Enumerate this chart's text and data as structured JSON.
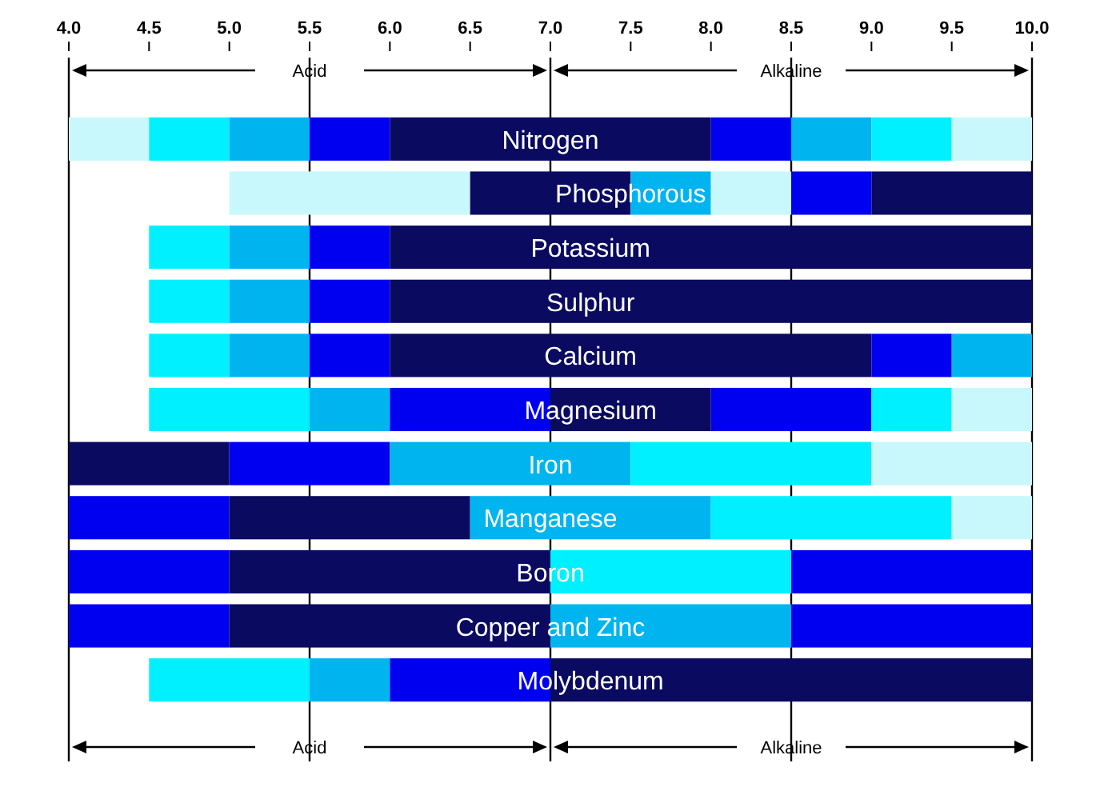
{
  "chart_data": {
    "type": "bar",
    "orientation": "horizontal",
    "categories": [
      "Nitrogen",
      "Phosphorous",
      "Potassium",
      "Sulphur",
      "Calcium",
      "Magnesium",
      "Iron",
      "Manganese",
      "Boron",
      "Copper and Zinc",
      "Molybdenum"
    ],
    "series": [
      {
        "base": [
          4,
          5,
          4.5,
          4.5,
          4.5,
          4.5,
          4,
          4,
          4,
          4,
          4.5
        ],
        "values": [
          0.5,
          1.5,
          0.5,
          0.5,
          0.5,
          1,
          1,
          1,
          1,
          1,
          1
        ],
        "colors": [
          "#c8f8fc",
          "#c8f8fc",
          "#00f0ff",
          "#00f0ff",
          "#00f0ff",
          "#00f0ff",
          "#0a0a60",
          "#0000f0",
          "#0000f0",
          "#0000f0",
          "#00f0ff"
        ]
      },
      {
        "base": [
          4.5,
          6.5,
          5,
          5,
          5,
          5.5,
          5,
          5,
          5,
          5,
          5.5
        ],
        "values": [
          0.5,
          1,
          0.5,
          0.5,
          0.5,
          0.5,
          1,
          1.5,
          2,
          2,
          0.5
        ],
        "colors": [
          "#00f0ff",
          "#0a0a60",
          "#00b4f0",
          "#00b4f0",
          "#00b4f0",
          "#00b4f0",
          "#0000f0",
          "#0a0a60",
          "#0a0a60",
          "#0a0a60",
          "#00b4f0"
        ]
      },
      {
        "base": [
          5,
          7.5,
          5.5,
          5.5,
          5.5,
          6,
          6,
          6.5,
          7,
          7,
          6
        ],
        "values": [
          0.5,
          0.5,
          0.5,
          0.5,
          0.5,
          1,
          1.5,
          1.5,
          1.5,
          1.5,
          1
        ],
        "colors": [
          "#00b4f0",
          "#00b4f0",
          "#0000f0",
          "#0000f0",
          "#0000f0",
          "#0000f0",
          "#00b4f0",
          "#00b4f0",
          "#00f0ff",
          "#00b4f0",
          "#0000f0"
        ]
      },
      {
        "base": [
          5.5,
          8,
          6,
          6,
          6,
          7,
          7.5,
          8,
          8.5,
          8.5,
          7
        ],
        "values": [
          0.5,
          0.5,
          4,
          4,
          3,
          1,
          1.5,
          1.5,
          1.5,
          1.5,
          3
        ],
        "colors": [
          "#0000f0",
          "#c8f8fc",
          "#0a0a60",
          "#0a0a60",
          "#0a0a60",
          "#0a0a60",
          "#00f0ff",
          "#00f0ff",
          "#0000f0",
          "#0000f0",
          "#0a0a60"
        ]
      },
      {
        "base": [
          6,
          8.5,
          null,
          null,
          9,
          8,
          9,
          9.5,
          null,
          null,
          null
        ],
        "values": [
          2,
          0.5,
          null,
          null,
          0.5,
          1,
          1,
          0.5,
          null,
          null,
          null
        ],
        "colors": [
          "#0a0a60",
          "#0000f0",
          null,
          null,
          "#0000f0",
          "#0000f0",
          "#c8f8fc",
          "#c8f8fc",
          null,
          null,
          null
        ]
      },
      {
        "base": [
          8,
          9,
          null,
          null,
          9.5,
          9,
          null,
          null,
          null,
          null,
          null
        ],
        "values": [
          0.5,
          1,
          null,
          null,
          0.5,
          0.5,
          null,
          null,
          null,
          null,
          null
        ],
        "colors": [
          "#0000f0",
          "#0a0a60",
          null,
          null,
          "#00b4f0",
          "#00f0ff",
          null,
          null,
          null,
          null,
          null
        ]
      },
      {
        "base": [
          8.5,
          null,
          null,
          null,
          null,
          9.5,
          null,
          null,
          null,
          null,
          null
        ],
        "values": [
          0.5,
          null,
          null,
          null,
          null,
          0.5,
          null,
          null,
          null,
          null,
          null
        ],
        "colors": [
          "#00b4f0",
          null,
          null,
          null,
          null,
          "#c8f8fc",
          null,
          null,
          null,
          null,
          null
        ]
      },
      {
        "base": [
          9,
          null,
          null,
          null,
          null,
          null,
          null,
          null,
          null,
          null,
          null
        ],
        "values": [
          0.5,
          null,
          null,
          null,
          null,
          null,
          null,
          null,
          null,
          null,
          null
        ],
        "colors": [
          "#00f0ff",
          null,
          null,
          null,
          null,
          null,
          null,
          null,
          null,
          null,
          null
        ]
      },
      {
        "base": [
          9.5,
          null,
          null,
          null,
          null,
          null,
          null,
          null,
          null,
          null,
          null
        ],
        "values": [
          0.5,
          null,
          null,
          null,
          null,
          null,
          null,
          null,
          null,
          null,
          null
        ],
        "colors": [
          "#c8f8fc",
          null,
          null,
          null,
          null,
          null,
          null,
          null,
          null,
          null,
          null
        ]
      }
    ],
    "xlim": [
      4,
      10
    ],
    "xticks": [
      {
        "value": 4,
        "label": "4.0"
      },
      {
        "value": 4.5,
        "label": "4.5"
      },
      {
        "value": 5,
        "label": "5.0"
      },
      {
        "value": 5.5,
        "label": "5.5"
      },
      {
        "value": 6,
        "label": "6.0"
      },
      {
        "value": 6.5,
        "label": "6.5"
      },
      {
        "value": 7,
        "label": "7.0"
      },
      {
        "value": 7.5,
        "label": "7.5"
      },
      {
        "value": 8,
        "label": "8.0"
      },
      {
        "value": 8.5,
        "label": "8.5"
      },
      {
        "value": 9,
        "label": "9.0"
      },
      {
        "value": 9.5,
        "label": "9.5"
      },
      {
        "value": 10,
        "label": "10.0"
      }
    ],
    "ref_lines": [
      {
        "axis": "x",
        "value": 5.5
      },
      {
        "axis": "x",
        "value": 7
      },
      {
        "axis": "x",
        "value": 8.5
      }
    ],
    "annotations": [
      "Acid",
      "Alkaline",
      "Acid",
      "Alkaline"
    ]
  }
}
